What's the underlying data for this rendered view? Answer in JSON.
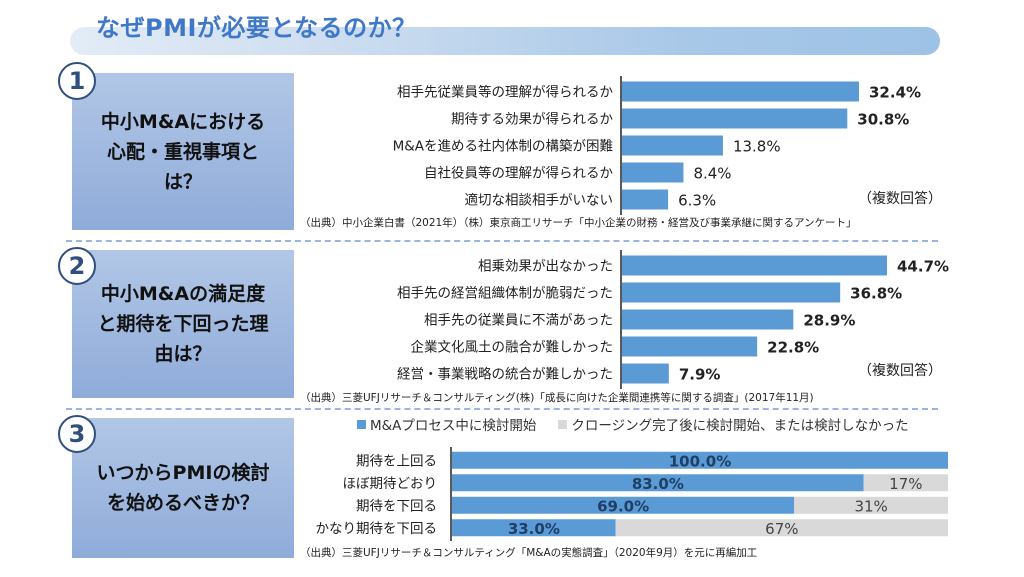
{
  "page": {
    "title": "なぜPMIが必要となるのか？"
  },
  "sections": [
    {
      "number": "1",
      "question": "中小M&Aにおける心配・重視事項とは？",
      "question_lines": [
        "中小M&Aにおける",
        "心配・重視事項と",
        "は？"
      ],
      "note": "（複数回答）",
      "source": "（出典）中小企業白書（2021年）（株）東京商工リサーチ「中小企業の財務・経営及び事業承継に関するアンケート」"
    },
    {
      "number": "2",
      "question": "中小M&Aの満足度と期待を下回った理由は？",
      "question_lines": [
        "中小M&Aの満足度",
        "と期待を下回った理",
        "由は？"
      ],
      "note": "（複数回答）",
      "source": "（出典）三菱UFJリサーチ＆コンサルティング(株)「成長に向けた企業間連携等に関する調査」(2017年11月)"
    },
    {
      "number": "3",
      "question": "いつからPMIの検討を始めるべきか？",
      "question_lines": [
        "いつからPMIの検討",
        "を始めるべきか？"
      ],
      "source": "（出典）三菱UFJリサーチ＆コンサルティング「M&Aの実態調査」（2020年9月）を元に再編加工"
    }
  ],
  "colors": {
    "accent": "#5b9bd5",
    "gray": "#d9d9d9",
    "title": "#3f78c8"
  },
  "chart_data": [
    {
      "type": "bar",
      "orientation": "horizontal",
      "title": "中小M&Aにおける心配・重視事項とは？",
      "categories": [
        "相手先従業員等の理解が得られるか",
        "期待する効果が得られるか",
        "M&Aを進める社内体制の構築が困難",
        "自社役員等の理解が得られるか",
        "適切な相談相手がいない"
      ],
      "values": [
        32.4,
        30.8,
        13.8,
        8.4,
        6.3
      ],
      "labels": [
        "32.4%",
        "30.8%",
        "13.8%",
        "8.4%",
        "6.3%"
      ],
      "label_bold": [
        true,
        true,
        false,
        false,
        false
      ],
      "unit": "%",
      "xlim": [
        0,
        32.4
      ],
      "grid": false,
      "xlabel": "",
      "ylabel": ""
    },
    {
      "type": "bar",
      "orientation": "horizontal",
      "title": "中小M&Aの満足度と期待を下回った理由は？",
      "categories": [
        "相乗効果が出なかった",
        "相手先の経営組織体制が脆弱だった",
        "相手先の従業員に不満があった",
        "企業文化風土の融合が難しかった",
        "経営・事業戦略の統合が難しかった"
      ],
      "values": [
        44.7,
        36.8,
        28.9,
        22.8,
        7.9
      ],
      "labels": [
        "44.7%",
        "36.8%",
        "28.9%",
        "22.8%",
        "7.9%"
      ],
      "label_bold": [
        true,
        true,
        true,
        true,
        true
      ],
      "unit": "%",
      "xlim": [
        0,
        44.7
      ],
      "grid": false,
      "xlabel": "",
      "ylabel": ""
    },
    {
      "type": "bar",
      "orientation": "horizontal",
      "stacked": true,
      "title": "いつからPMIの検討を始めるべきか？",
      "categories": [
        "期待を上回る",
        "ほぼ期待どおり",
        "期待を下回る",
        "かなり期待を下回る"
      ],
      "series": [
        {
          "name": "M&Aプロセス中に検討開始",
          "values": [
            100.0,
            83.0,
            69.0,
            33.0
          ],
          "labels": [
            "100.0%",
            "83.0%",
            "69.0%",
            "33.0%"
          ]
        },
        {
          "name": "クロージング完了後に検討開始、または検討しなかった",
          "values": [
            0,
            17,
            31,
            67
          ],
          "labels": [
            "",
            "17%",
            "31%",
            "67%"
          ]
        }
      ],
      "legend_position": "top",
      "xlim": [
        0,
        100
      ],
      "grid": false,
      "xlabel": "",
      "ylabel": ""
    }
  ]
}
